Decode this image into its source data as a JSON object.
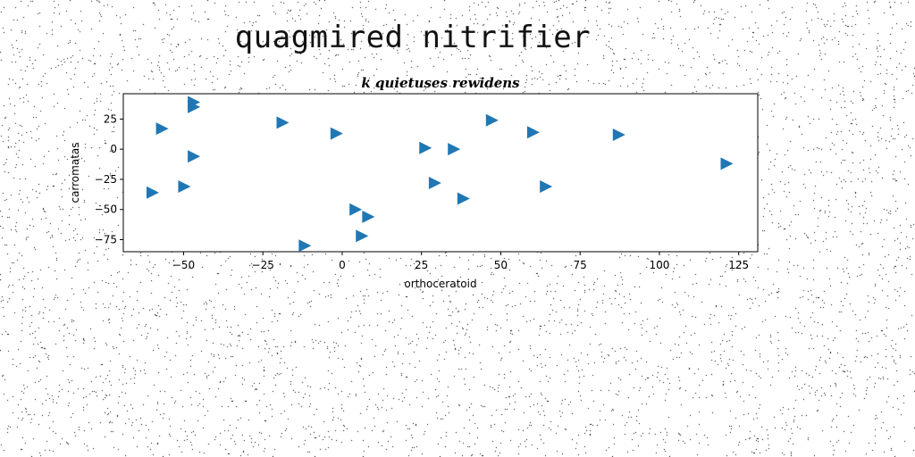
{
  "page_title": "quagmired nitrifier",
  "chart_data": {
    "type": "scatter",
    "title": "k quietuses rewidens",
    "xlabel": "orthoceratoid",
    "ylabel": "carromatas",
    "xlim": [
      -69,
      131
    ],
    "ylim": [
      -85,
      46
    ],
    "xticks": [
      -50,
      -25,
      0,
      25,
      50,
      75,
      100,
      125
    ],
    "yticks": [
      -75,
      -50,
      -25,
      0,
      25
    ],
    "marker": "triangle-right",
    "grid": false,
    "legend": "none",
    "colors": {
      "marker": "#1f77b4",
      "axis": "#000000",
      "noise": "#000000"
    },
    "points": [
      {
        "x": -47,
        "y": 39
      },
      {
        "x": -47,
        "y": 35
      },
      {
        "x": -57,
        "y": 17
      },
      {
        "x": -19,
        "y": 22
      },
      {
        "x": -2,
        "y": 13
      },
      {
        "x": 47,
        "y": 24
      },
      {
        "x": 60,
        "y": 14
      },
      {
        "x": 87,
        "y": 12
      },
      {
        "x": 26,
        "y": 1
      },
      {
        "x": 35,
        "y": 0
      },
      {
        "x": -47,
        "y": -6
      },
      {
        "x": 121,
        "y": -12
      },
      {
        "x": 29,
        "y": -28
      },
      {
        "x": 64,
        "y": -31
      },
      {
        "x": -50,
        "y": -31
      },
      {
        "x": -60,
        "y": -36
      },
      {
        "x": 38,
        "y": -41
      },
      {
        "x": 4,
        "y": -50
      },
      {
        "x": 8,
        "y": -56
      },
      {
        "x": 6,
        "y": -72
      },
      {
        "x": -12,
        "y": -80
      }
    ]
  }
}
